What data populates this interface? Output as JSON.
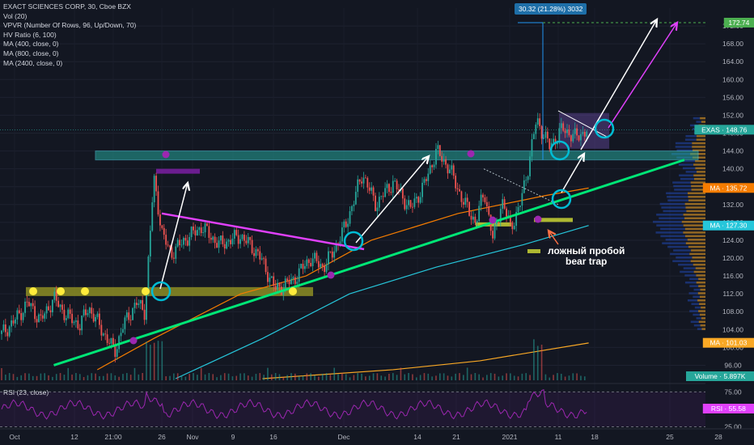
{
  "legend": {
    "title": "EXACT SCIENCES CORP, 30, Cboe BZX",
    "indicators": [
      "Vol (20)",
      "VPVR (Number Of Rows, 96, Up/Down, 70)",
      "HV Ratio (6, 100)",
      "MA (400, close, 0)",
      "MA (800, close, 0)",
      "MA (2400, close, 0)"
    ]
  },
  "rsi_label": "RSI (23, close)",
  "measure_label": "30.32 (21.28%) 3032",
  "annotation": {
    "line1": "ложный пробой",
    "line2": "bear trap"
  },
  "price_axis": {
    "ticks": [
      96,
      100,
      104,
      108,
      112,
      116,
      120,
      124,
      128,
      132,
      136,
      140,
      144,
      148,
      152,
      156,
      160,
      164,
      168,
      172
    ],
    "tick_labels": [
      "96.00",
      "100.00",
      "104.00",
      "108.00",
      "112.00",
      "116.00",
      "120.00",
      "124.00",
      "128.00",
      "132.00",
      "136.00",
      "140.00",
      "144.00",
      "148.00",
      "152.00",
      "156.00",
      "160.00",
      "164.00",
      "168.00",
      "172.00"
    ]
  },
  "rsi_axis": {
    "ticks": [
      25,
      50,
      75
    ],
    "tick_labels": [
      "25.00",
      "50.00",
      "75.00"
    ]
  },
  "time_axis": [
    "Oct",
    "12",
    "21:00",
    "26",
    "Nov",
    "9",
    "16",
    "Dec",
    "14",
    "21",
    "2021",
    "11",
    "18",
    "25",
    "28"
  ],
  "badges": [
    {
      "text": "172.74",
      "value": 172.74,
      "color": "#4caf50"
    },
    {
      "text": "EXAS · 148.76",
      "value": 148.76,
      "color": "#26a69a"
    },
    {
      "text": "MA · 135.72",
      "value": 135.72,
      "color": "#f57c00"
    },
    {
      "text": "MA · 127.30",
      "value": 127.3,
      "color": "#26c6da"
    },
    {
      "text": "MA · 101.03",
      "value": 101.03,
      "color": "#f9a825"
    },
    {
      "text": "Volume · 5.897K",
      "color": "#26a69a"
    },
    {
      "text": "RSI · 55.58",
      "color": "#e040fb"
    }
  ],
  "colors": {
    "background": "#131722",
    "up": "#26a69a",
    "down": "#ef5350",
    "support": "#00e676",
    "trend": "#e040fb",
    "zone": "#26a69a",
    "ma400": "#f57c00",
    "ma800": "#26c6da",
    "ma2400": "#f9a825",
    "rsi": "#9c27b0",
    "accent": "#00bcd4",
    "marker_yellow": "#ffeb3b"
  },
  "chart_data": {
    "type": "line",
    "title": "EXACT SCIENCES CORP, 30, Cboe BZX",
    "ylim": [
      93,
      176
    ],
    "price_path": [
      {
        "t": 0,
        "p": 103
      },
      {
        "t": 3,
        "p": 106
      },
      {
        "t": 6,
        "p": 110
      },
      {
        "t": 9,
        "p": 106
      },
      {
        "t": 12,
        "p": 111
      },
      {
        "t": 15,
        "p": 107
      },
      {
        "t": 18,
        "p": 105
      },
      {
        "t": 20,
        "p": 109
      },
      {
        "t": 23,
        "p": 104
      },
      {
        "t": 26,
        "p": 99
      },
      {
        "t": 28,
        "p": 105
      },
      {
        "t": 31,
        "p": 110
      },
      {
        "t": 33,
        "p": 108
      },
      {
        "t": 35,
        "p": 138
      },
      {
        "t": 37,
        "p": 125
      },
      {
        "t": 39,
        "p": 121
      },
      {
        "t": 42,
        "p": 124
      },
      {
        "t": 46,
        "p": 127
      },
      {
        "t": 50,
        "p": 123
      },
      {
        "t": 55,
        "p": 125
      },
      {
        "t": 59,
        "p": 121
      },
      {
        "t": 63,
        "p": 113
      },
      {
        "t": 67,
        "p": 115
      },
      {
        "t": 71,
        "p": 120
      },
      {
        "t": 74,
        "p": 118
      },
      {
        "t": 76,
        "p": 121
      },
      {
        "t": 79,
        "p": 127
      },
      {
        "t": 83,
        "p": 139
      },
      {
        "t": 86,
        "p": 132
      },
      {
        "t": 90,
        "p": 137
      },
      {
        "t": 94,
        "p": 131
      },
      {
        "t": 97,
        "p": 136
      },
      {
        "t": 100,
        "p": 144
      },
      {
        "t": 103,
        "p": 140
      },
      {
        "t": 106,
        "p": 133
      },
      {
        "t": 109,
        "p": 128
      },
      {
        "t": 111,
        "p": 135
      },
      {
        "t": 113,
        "p": 124
      },
      {
        "t": 115,
        "p": 133
      },
      {
        "t": 117,
        "p": 127
      },
      {
        "t": 119,
        "p": 131
      },
      {
        "t": 121,
        "p": 140
      },
      {
        "t": 123,
        "p": 151
      },
      {
        "t": 126,
        "p": 145
      },
      {
        "t": 129,
        "p": 149
      },
      {
        "t": 132,
        "p": 147
      },
      {
        "t": 135,
        "p": 149
      }
    ],
    "ma400": [
      {
        "t": 22,
        "p": 95
      },
      {
        "t": 35,
        "p": 102
      },
      {
        "t": 55,
        "p": 112
      },
      {
        "t": 70,
        "p": 116
      },
      {
        "t": 85,
        "p": 124
      },
      {
        "t": 105,
        "p": 130
      },
      {
        "t": 125,
        "p": 134
      },
      {
        "t": 135,
        "p": 135.7
      }
    ],
    "ma800": [
      {
        "t": 40,
        "p": 93
      },
      {
        "t": 60,
        "p": 102
      },
      {
        "t": 80,
        "p": 112
      },
      {
        "t": 100,
        "p": 118
      },
      {
        "t": 120,
        "p": 123
      },
      {
        "t": 135,
        "p": 127.3
      }
    ],
    "ma2400": [
      {
        "t": 60,
        "p": 93
      },
      {
        "t": 90,
        "p": 95
      },
      {
        "t": 110,
        "p": 97
      },
      {
        "t": 135,
        "p": 101
      }
    ],
    "support_line": [
      {
        "t": 12,
        "p": 96
      },
      {
        "t": 157,
        "p": 142
      }
    ],
    "resistance_zone": [
      142,
      144
    ],
    "support_zone": [
      111.5,
      113.5
    ],
    "measure_target": 172.74,
    "rsi": {
      "ylim": [
        22,
        80
      ],
      "upper": 75,
      "lower": 25
    }
  }
}
